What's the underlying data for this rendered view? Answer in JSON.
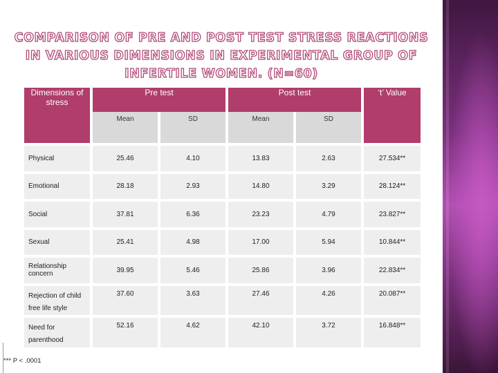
{
  "title": "COMPARISON OF PRE AND POST TEST STRESS REACTIONS IN VARIOUS DIMENSIONS IN EXPERIMENTAL GROUP OF INFERTILE WOMEN. (N=60)",
  "table": {
    "headers": {
      "dimension": "Dimensions of stress",
      "pre": "Pre test",
      "post": "Post test",
      "t": "‘t’ Value"
    },
    "subheaders": [
      "Mean",
      "SD",
      "Mean",
      "SD"
    ],
    "rows": [
      {
        "label": "Physical",
        "pre_mean": "25.46",
        "pre_sd": "4.10",
        "post_mean": "13.83",
        "post_sd": "2.63",
        "t": "27.534**"
      },
      {
        "label": "Emotional",
        "pre_mean": "28.18",
        "pre_sd": "2.93",
        "post_mean": "14.80",
        "post_sd": "3.29",
        "t": "28.124**"
      },
      {
        "label": "Social",
        "pre_mean": "37.81",
        "pre_sd": "6.36",
        "post_mean": "23.23",
        "post_sd": "4.79",
        "t": "23.827**"
      },
      {
        "label": "Sexual",
        "pre_mean": "25.41",
        "pre_sd": "4.98",
        "post_mean": "17.00",
        "post_sd": "5.94",
        "t": "10.844**"
      },
      {
        "label": "Relationship concern",
        "pre_mean": "39.95",
        "pre_sd": "5.46",
        "post_mean": "25.86",
        "post_sd": "3.96",
        "t": "22.834**"
      },
      {
        "label": "Rejection of child free life style",
        "pre_mean": "37.60",
        "pre_sd": "3.63",
        "post_mean": "27.46",
        "post_sd": "4.26",
        "t": "20.087**"
      },
      {
        "label": "Need for parenthood",
        "pre_mean": "52.16",
        "pre_sd": "4.62",
        "post_mean": "42.10",
        "post_sd": "3.72",
        "t": "16.848**"
      }
    ]
  },
  "footnote": "*** P < .0001"
}
